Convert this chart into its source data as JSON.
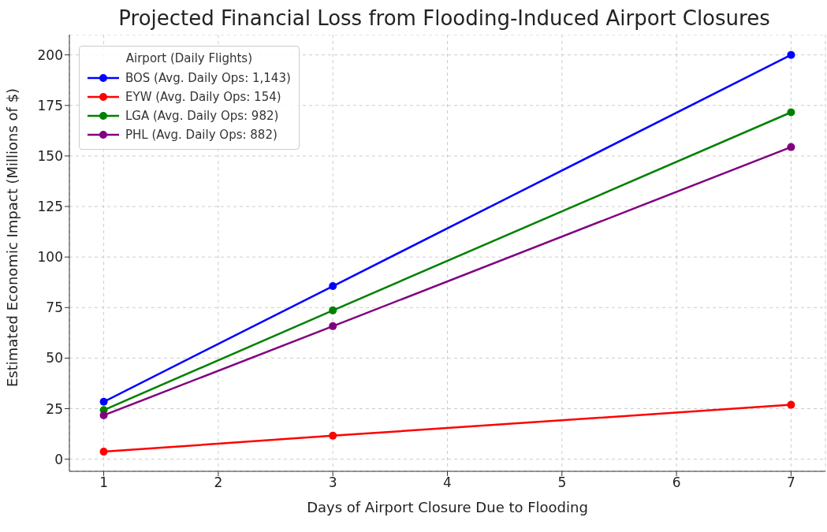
{
  "chart_data": {
    "type": "line",
    "title": "Projected Financial Loss from Flooding-Induced Airport Closures",
    "xlabel": "Days of Airport Closure Due to Flooding",
    "ylabel": "Estimated Economic Impact (Millions of $)",
    "legend_title": "Airport (Daily Flights)",
    "x": [
      1,
      3,
      7
    ],
    "series": [
      {
        "name": "BOS (Avg. Daily Ops: 1,143)",
        "color": "#0000ff",
        "values": [
          28.4,
          85.6,
          200
        ]
      },
      {
        "name": "EYW (Avg. Daily Ops: 154)",
        "color": "#ff0000",
        "values": [
          3.7,
          11.6,
          26.9
        ]
      },
      {
        "name": "LGA (Avg. Daily Ops: 982)",
        "color": "#008000",
        "values": [
          24.3,
          73.6,
          171.6
        ]
      },
      {
        "name": "PHL (Avg. Daily Ops: 882)",
        "color": "#800080",
        "values": [
          21.7,
          65.8,
          154.4
        ]
      }
    ],
    "xlim": [
      0.7,
      7.3
    ],
    "xticks": [
      1,
      2,
      3,
      4,
      5,
      6,
      7
    ],
    "ylim": [
      -6,
      210
    ],
    "yticks": [
      0,
      25,
      50,
      75,
      100,
      125,
      150,
      175,
      200
    ],
    "grid": true,
    "legend": "top left",
    "marker": "circle",
    "line_style": "solid"
  }
}
